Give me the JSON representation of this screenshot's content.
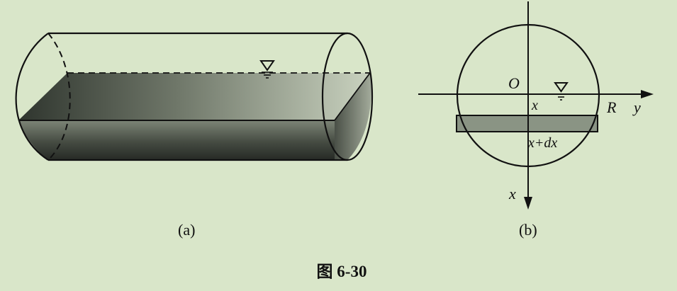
{
  "figure": {
    "caption": "图 6-30",
    "panel_a_label": "(a)",
    "panel_b_label": "(b)"
  },
  "panel_b": {
    "origin_label": "O",
    "x_label": "x",
    "radius_label": "R",
    "y_axis_label": "y",
    "x_axis_label": "x",
    "strip_label": "x+dx"
  },
  "colors": {
    "background": "#d9e6c9",
    "line": "#111111",
    "liquid_dark": "#3a3f38",
    "liquid_mid": "#8f968a",
    "strip": "#8a9484"
  },
  "icons": {
    "water_level": "water-surface-triangle-icon"
  }
}
